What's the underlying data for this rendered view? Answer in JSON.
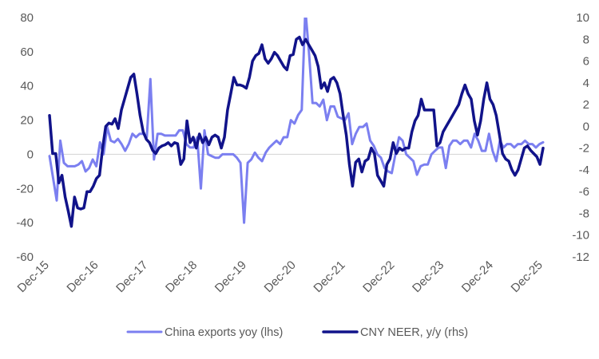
{
  "chart_data": {
    "type": "line",
    "title": "",
    "x_tick_labels": [
      "Dec-15",
      "Dec-16",
      "Dec-17",
      "Dec-18",
      "Dec-19",
      "Dec-20",
      "Dec-21",
      "Dec-22",
      "Dec-23",
      "Dec-24",
      "Dec-25"
    ],
    "x_start": "Dec-15",
    "x_end": "Dec-25",
    "y_left": {
      "min": -60,
      "max": 80,
      "step": 20,
      "ticks": [
        "80",
        "60",
        "40",
        "20",
        "0",
        "-20",
        "-40",
        "-60"
      ]
    },
    "y_right": {
      "min": -12,
      "max": 10,
      "step": 2,
      "ticks": [
        "10",
        "8",
        "6",
        "4",
        "2",
        "0",
        "-2",
        "-4",
        "-6",
        "-8",
        "-10",
        "-12"
      ]
    },
    "series": [
      {
        "name": "China exports yoy (lhs)",
        "axis": "left",
        "color": "#7b7ff0",
        "start_index": 0,
        "values": [
          -1,
          -14,
          -27,
          8,
          -5,
          -7,
          -7,
          -7,
          -6,
          -4,
          -10,
          -8,
          -3,
          -7,
          7,
          0,
          16,
          8,
          7,
          9,
          6,
          2,
          6,
          12,
          10,
          12,
          12,
          10,
          44,
          -3,
          12,
          12,
          11,
          11,
          11,
          11,
          14,
          14,
          6,
          4,
          4,
          10,
          -20,
          14,
          0,
          -1,
          -2,
          -2,
          0,
          0,
          0,
          0,
          -2,
          -5,
          -40,
          -5,
          -3,
          1,
          -2,
          -4,
          1,
          4,
          6,
          8,
          6,
          10,
          10,
          20,
          18,
          23,
          26,
          85,
          60,
          30,
          30,
          28,
          32,
          20,
          28,
          28,
          22,
          21,
          20,
          24,
          6,
          12,
          16,
          16,
          18,
          8,
          5,
          0,
          -2,
          -8,
          -10,
          -11,
          0,
          10,
          8,
          0,
          -2,
          -4,
          -12,
          -7,
          -6,
          -6,
          0,
          2,
          4,
          4,
          -8,
          5,
          8,
          8,
          6,
          8,
          8,
          4,
          12,
          8,
          2,
          2,
          12,
          2,
          -4,
          8,
          4,
          6,
          6,
          4,
          6,
          6,
          8,
          6,
          6,
          4,
          6,
          7
        ]
      },
      {
        "name": "CNY NEER, y/y (rhs)",
        "axis": "right",
        "color": "#11138a",
        "start_index": 0,
        "values": [
          1.0,
          -2.5,
          -2.5,
          -5.2,
          -4.5,
          -6.5,
          -7.8,
          -9.2,
          -6.5,
          -7.5,
          -7.6,
          -7.5,
          -6.0,
          -6.0,
          -5.5,
          -4.8,
          -4.5,
          -2.0,
          0.0,
          0.3,
          0.2,
          0.7,
          -0.2,
          1.5,
          2.5,
          3.5,
          4.5,
          4.8,
          3.0,
          1.0,
          -0.5,
          -1.2,
          -1.5,
          -2.2,
          -2.5,
          -2.0,
          -1.8,
          -1.7,
          -1.5,
          -1.8,
          -1.5,
          -1.6,
          -3.5,
          -3.0,
          0.5,
          -1.5,
          -1.0,
          -2.0,
          -0.7,
          -1.5,
          -1.0,
          -1.7,
          -1.0,
          -0.8,
          -1.0,
          -2.0,
          -1.0,
          1.5,
          3.0,
          4.5,
          3.8,
          3.8,
          3.7,
          3.5,
          4.5,
          6.0,
          6.5,
          6.7,
          7.5,
          6.2,
          5.8,
          6.2,
          6.8,
          6.5,
          6.0,
          5.5,
          5.2,
          6.5,
          6.6,
          8.0,
          8.2,
          7.5,
          8.0,
          7.5,
          7.0,
          6.5,
          5.5,
          3.5,
          4.0,
          3.2,
          4.3,
          4.5,
          4.0,
          3.0,
          1.0,
          -0.8,
          -3.5,
          -5.5,
          -3.3,
          -3.0,
          -4.2,
          -3.2,
          -3.0,
          -2.0,
          -2.5,
          -4.5,
          -5.0,
          -5.5,
          -3.5,
          -3.0,
          -1.5,
          -2.5,
          -2.0,
          -2.2,
          -2.0,
          -2.0,
          -0.5,
          0.5,
          1.0,
          2.5,
          1.5,
          1.5,
          1.5,
          1.5,
          -1.8,
          -1.5,
          -0.5,
          0.0,
          0.5,
          1.0,
          1.5,
          2.0,
          3.0,
          3.8,
          3.0,
          2.5,
          0.5,
          -0.8,
          0.5,
          2.5,
          4.0,
          2.5,
          2.0,
          1.0,
          -0.7,
          -2.5,
          -3.0,
          -3.2,
          -4.0,
          -4.5,
          -4.0,
          -3.0,
          -2.0,
          -1.8,
          -2.2,
          -2.5,
          -2.8,
          -3.5,
          -2.0
        ]
      }
    ],
    "legend_position": "bottom",
    "grid": false,
    "xlabel": "",
    "ylabel_left": "",
    "ylabel_right": ""
  }
}
